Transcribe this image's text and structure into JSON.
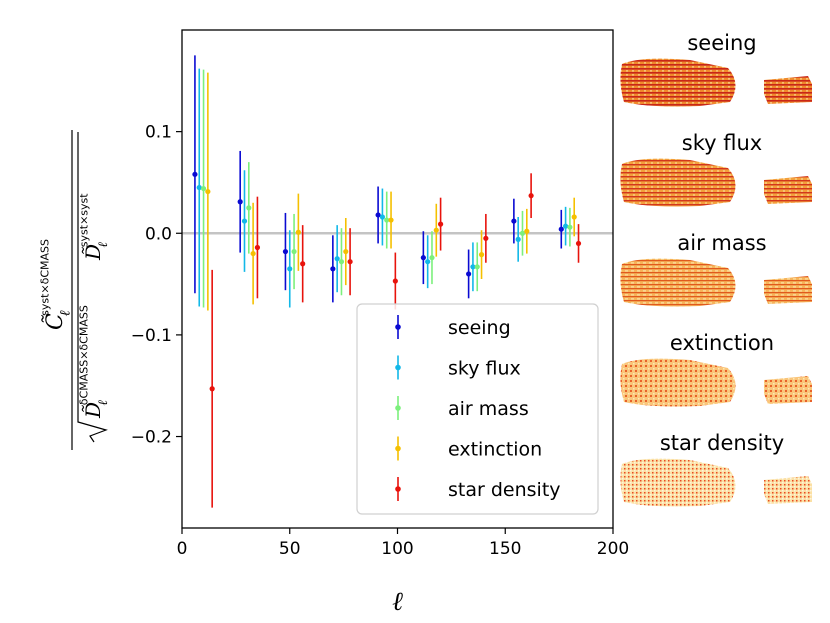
{
  "chart_data": {
    "type": "scatter",
    "xlabel": "ℓ",
    "ylabel": {
      "numerator": {
        "symbol": "C̃",
        "sub": "ℓ",
        "sup": "syst×δCMASS"
      },
      "denominator": [
        {
          "symbol": "D̃",
          "sub": "ℓ",
          "sup": "δCMASS×δCMASS"
        },
        {
          "symbol": "D̃",
          "sub": "ℓ",
          "sup": "syst×syst"
        }
      ]
    },
    "xlim": [
      0,
      200
    ],
    "ylim": [
      -0.29,
      0.2
    ],
    "xticks": [
      0,
      50,
      100,
      150,
      200
    ],
    "yticks": [
      -0.2,
      -0.1,
      0.0,
      0.1
    ],
    "xtick_labels": [
      "0",
      "50",
      "100",
      "150",
      "200"
    ],
    "ytick_labels": [
      "−0.2",
      "−0.1",
      "0.0",
      "0.1"
    ],
    "zero_line": true,
    "legend_position": "lower right",
    "series": [
      {
        "name": "seeing",
        "color": "#0a0ad2",
        "x": [
          6,
          27,
          48,
          70,
          91,
          112,
          133,
          154,
          176
        ],
        "y": [
          0.058,
          0.031,
          -0.018,
          -0.035,
          0.018,
          -0.024,
          -0.04,
          0.012,
          0.004
        ],
        "yerr": [
          0.117,
          0.05,
          0.038,
          0.033,
          0.028,
          0.026,
          0.024,
          0.022,
          0.019
        ]
      },
      {
        "name": "sky flux",
        "color": "#12b8e8",
        "x": [
          8,
          29,
          50,
          72,
          93,
          114,
          135,
          156,
          178
        ],
        "y": [
          0.045,
          0.012,
          -0.035,
          -0.025,
          0.016,
          -0.028,
          -0.033,
          -0.006,
          0.007
        ],
        "yerr": [
          0.117,
          0.05,
          0.038,
          0.033,
          0.028,
          0.026,
          0.024,
          0.022,
          0.019
        ]
      },
      {
        "name": "air mass",
        "color": "#7cf07c",
        "x": [
          10,
          31,
          52,
          74,
          95,
          116,
          137,
          158,
          180
        ],
        "y": [
          0.044,
          0.025,
          -0.018,
          -0.028,
          0.013,
          -0.024,
          -0.033,
          0.0,
          0.006
        ],
        "yerr": [
          0.117,
          0.045,
          0.037,
          0.033,
          0.028,
          0.026,
          0.024,
          0.022,
          0.019
        ]
      },
      {
        "name": "extinction",
        "color": "#f5c000",
        "x": [
          12,
          33,
          54,
          76,
          97,
          118,
          139,
          160,
          182
        ],
        "y": [
          0.041,
          -0.02,
          0.001,
          -0.018,
          0.013,
          0.003,
          -0.021,
          0.002,
          0.016
        ],
        "yerr": [
          0.117,
          0.05,
          0.038,
          0.033,
          0.028,
          0.026,
          0.024,
          0.022,
          0.019
        ]
      },
      {
        "name": "star density",
        "color": "#e8130c",
        "x": [
          14,
          35,
          56,
          78,
          99,
          120,
          141,
          162,
          184
        ],
        "y": [
          -0.153,
          -0.014,
          -0.03,
          -0.028,
          -0.047,
          0.009,
          -0.005,
          0.037,
          -0.01
        ],
        "yerr": [
          0.117,
          0.05,
          0.038,
          0.033,
          0.028,
          0.026,
          0.024,
          0.022,
          0.019
        ]
      }
    ]
  },
  "maps": [
    {
      "title": "seeing"
    },
    {
      "title": "sky flux"
    },
    {
      "title": "air mass"
    },
    {
      "title": "extinction"
    },
    {
      "title": "star density"
    }
  ]
}
